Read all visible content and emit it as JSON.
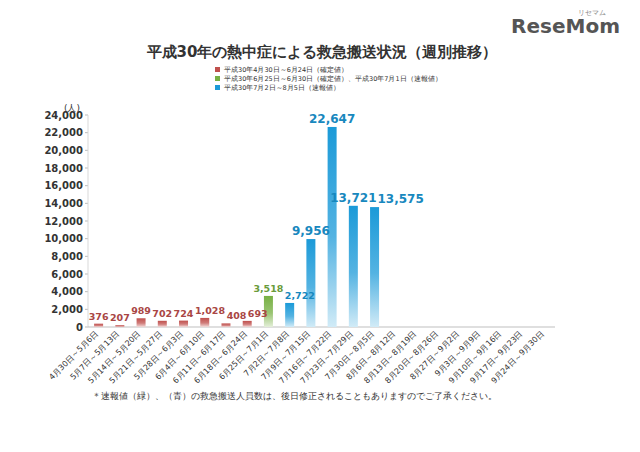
{
  "chart_data": {
    "type": "bar",
    "title": "平成30年の熱中症による救急搬送状況（週別推移）",
    "logo": "ReseMom",
    "logo_sub": "リセマム",
    "y_label": "(人)",
    "footnote": "＊速報値（緑）、（青）の救急搬送人員数は、後日修正されることもありますのでご了承ください。",
    "categories": [
      "4月30日～5月6日",
      "5月7日～5月13日",
      "5月14日～5月20日",
      "5月21日～5月27日",
      "5月28日～6月3日",
      "6月4日～6月10日",
      "6月11日～6月17日",
      "6月18日～6月24日",
      "6月25日～7月1日",
      "7月2日～7月8日",
      "7月9日～7月15日",
      "7月16日～7月22日",
      "7月23日～7月29日",
      "7月30日～8月5日",
      "8月6日～8月12日",
      "8月13日～8月19日",
      "8月20日～8月26日",
      "8月27日～9月2日",
      "9月3日～9月9日",
      "9月10日～9月16日",
      "9月17日～9月23日",
      "9月24日～9月30日"
    ],
    "series": [
      {
        "name": "平成30年4月30日～6月24日（確定値）",
        "color": "#c0504d",
        "values": [
          376,
          207,
          989,
          702,
          724,
          1028,
          408,
          693,
          null,
          null,
          null,
          null,
          null,
          null,
          null,
          null,
          null,
          null,
          null,
          null,
          null,
          null
        ],
        "value_labels": [
          "376",
          "207",
          "989",
          "702",
          "724",
          "1,028",
          "408",
          "693",
          null,
          null,
          null,
          null,
          null,
          null,
          null,
          null,
          null,
          null,
          null,
          null,
          null,
          null
        ]
      },
      {
        "name": "平成30年6月25日～6月30日（確定値）、平成30年7月1日（速報値）",
        "color": "#77b043",
        "values": [
          null,
          null,
          null,
          null,
          null,
          null,
          null,
          null,
          3518,
          null,
          null,
          null,
          null,
          null,
          null,
          null,
          null,
          null,
          null,
          null,
          null,
          null
        ],
        "value_labels": [
          null,
          null,
          null,
          null,
          null,
          null,
          null,
          null,
          "3,518",
          null,
          null,
          null,
          null,
          null,
          null,
          null,
          null,
          null,
          null,
          null,
          null,
          null
        ]
      },
      {
        "name": "平成30年7月2日～8月5日（速報値）",
        "color": "#1b9ad8",
        "values": [
          null,
          null,
          null,
          null,
          null,
          null,
          null,
          null,
          null,
          2722,
          9956,
          22647,
          13721,
          13575,
          null,
          null,
          null,
          null,
          null,
          null,
          null,
          null
        ],
        "value_labels": [
          null,
          null,
          null,
          null,
          null,
          null,
          null,
          null,
          null,
          "2,722",
          "9,956",
          "22,647",
          "13,721",
          "13,575",
          null,
          null,
          null,
          null,
          null,
          null,
          null,
          null
        ]
      }
    ],
    "ylim": [
      0,
      24000
    ],
    "yticks": [
      0,
      {
        "value": 2000,
        "label": "2,000"
      },
      {
        "value": 4000,
        "label": "4,000"
      },
      {
        "value": 6000,
        "label": "6,000"
      },
      {
        "value": 8000,
        "label": "8,000"
      },
      {
        "value": 10000,
        "label": "10,000"
      },
      {
        "value": 12000,
        "label": "12,000"
      },
      {
        "value": 14000,
        "label": "14,000"
      },
      {
        "value": 16000,
        "label": "16,000"
      },
      {
        "value": 18000,
        "label": "18,000"
      },
      {
        "value": 20000,
        "label": "20,000"
      },
      {
        "value": 22000,
        "label": "22,000"
      },
      {
        "value": 24000,
        "label": "24,000"
      }
    ],
    "grid": false,
    "legend": "top-left",
    "data_labels": true
  }
}
